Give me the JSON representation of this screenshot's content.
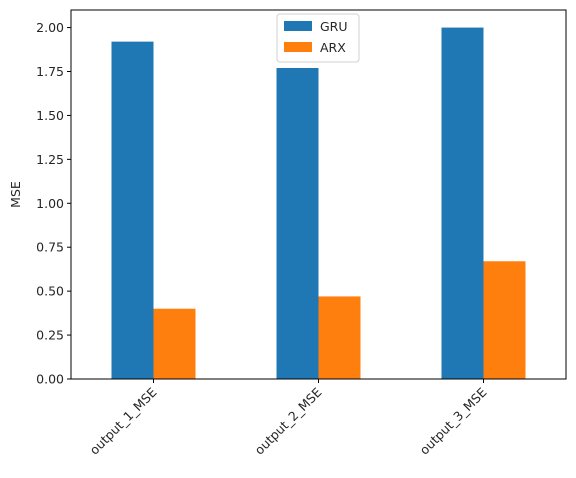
{
  "chart_data": {
    "type": "bar",
    "categories": [
      "output_1_MSE",
      "output_2_MSE",
      "output_3_MSE"
    ],
    "series": [
      {
        "name": "GRU",
        "values": [
          1.92,
          1.77,
          2.0
        ],
        "color": "#1f77b4"
      },
      {
        "name": "ARX",
        "values": [
          0.4,
          0.47,
          0.67
        ],
        "color": "#ff7f0e"
      }
    ],
    "title": "",
    "xlabel": "",
    "ylabel": "MSE",
    "ylim": [
      0,
      2.1
    ],
    "yticks": [
      "0.00",
      "0.25",
      "0.50",
      "0.75",
      "1.00",
      "1.25",
      "1.50",
      "1.75",
      "2.00"
    ],
    "xtick_rotation": "45 degrees",
    "grid": false,
    "legend_position": "upper center"
  }
}
